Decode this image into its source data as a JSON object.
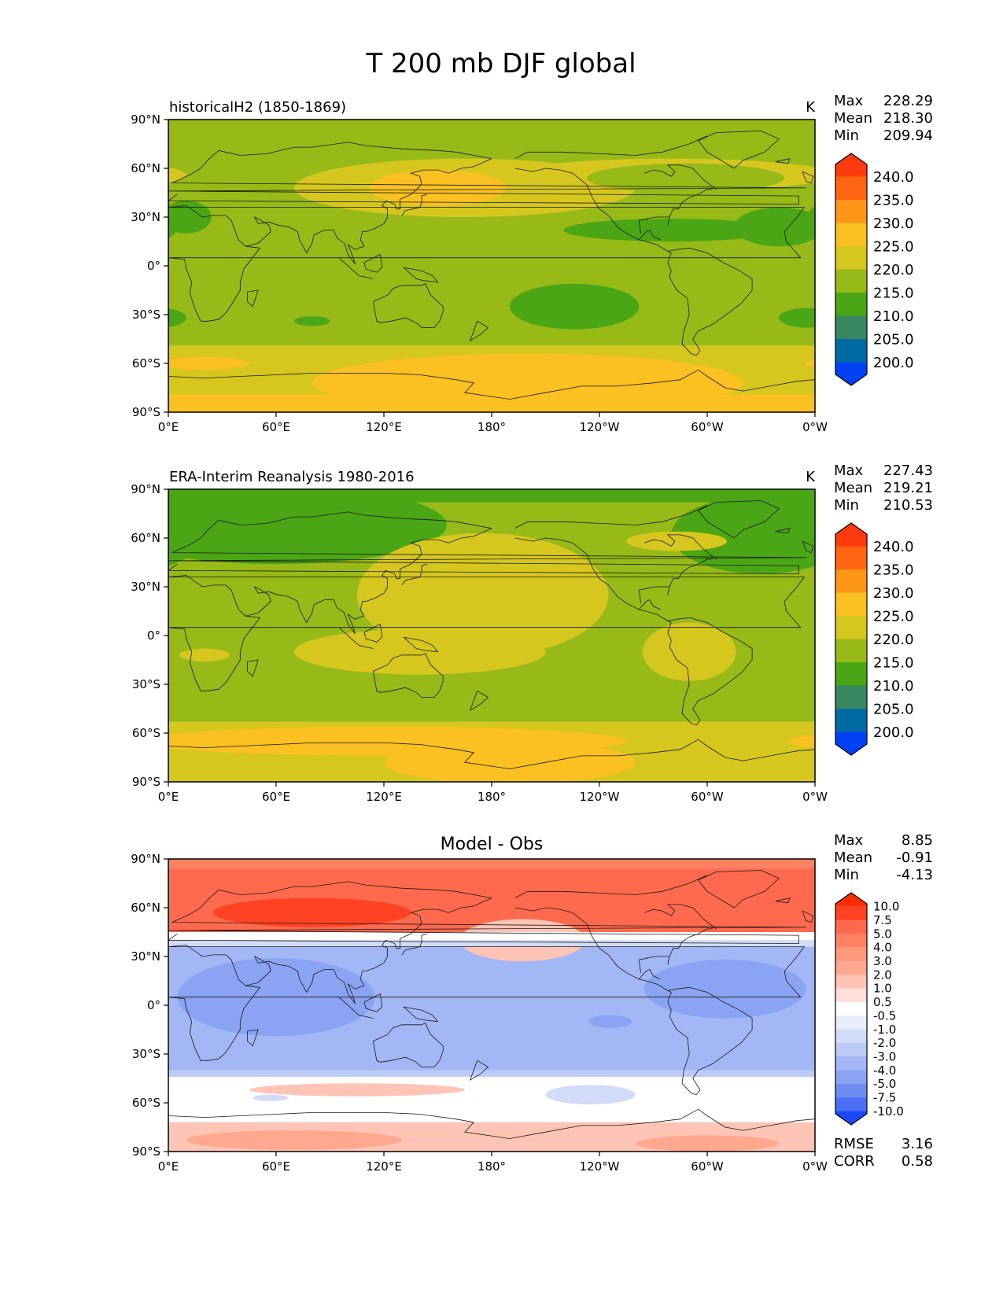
{
  "figure_title": "T 200 mb DJF global",
  "panels": [
    {
      "id": "model",
      "title_left": "historicalH2 (1850-1869)",
      "title_center": "",
      "units": "K",
      "stats": [
        [
          "Max",
          "228.29"
        ],
        [
          "Mean",
          "218.30"
        ],
        [
          "Min",
          "209.94"
        ]
      ],
      "extra_stats": [],
      "background_color": "#97ba18",
      "regions": [
        {
          "level": "225.0",
          "color": "#d6c71f",
          "shape": "ellipse",
          "lon": 165,
          "lat": 48,
          "rlon": 95,
          "rlat": 18
        },
        {
          "level": "230.0",
          "color": "#fbc021",
          "shape": "ellipse",
          "lon": 150,
          "lat": 48,
          "rlon": 38,
          "rlat": 11
        },
        {
          "level": "225.0",
          "color": "#d6c71f",
          "shape": "ellipse",
          "lon": 280,
          "lat": 56,
          "rlon": 90,
          "rlat": 10
        },
        {
          "level": "220.0",
          "color": "#97ba18",
          "shape": "ellipse",
          "lon": 288,
          "lat": 54,
          "rlon": 55,
          "rlat": 9
        },
        {
          "level": "210.0",
          "color": "#4aa614",
          "shape": "ellipse",
          "lon": 280,
          "lat": 22,
          "rlon": 60,
          "rlat": 7
        },
        {
          "level": "210.0",
          "color": "#4aa614",
          "shape": "ellipse",
          "lon": 340,
          "lat": 24,
          "rlon": 25,
          "rlat": 12
        },
        {
          "level": "210.0",
          "color": "#4aa614",
          "shape": "ellipse",
          "lon": 10,
          "lat": 30,
          "rlon": 14,
          "rlat": 10
        },
        {
          "level": "210.0",
          "color": "#4aa614",
          "shape": "ellipse",
          "lon": 226,
          "lat": -25,
          "rlon": 36,
          "rlat": 14
        },
        {
          "level": "210.0",
          "color": "#4aa614",
          "shape": "ellipse",
          "lon": 80,
          "lat": -34,
          "rlon": 10,
          "rlat": 3
        },
        {
          "level": "210.0",
          "color": "#4aa614",
          "shape": "ellipse",
          "lon": 355,
          "lat": -32,
          "rlon": 15,
          "rlat": 6
        },
        {
          "level": "220.0",
          "color": "#d6c71f",
          "shape": "band",
          "lat_top": -49,
          "lat_bot": -90
        },
        {
          "level": "225.0",
          "color": "#fbc021",
          "shape": "ellipse",
          "lon": 200,
          "lat": -72,
          "rlon": 120,
          "rlat": 18
        },
        {
          "level": "225.0",
          "color": "#fbc021",
          "shape": "ellipse",
          "lon": 20,
          "lat": -60,
          "rlon": 25,
          "rlat": 4
        },
        {
          "level": "225.0",
          "color": "#fbc021",
          "shape": "band",
          "lat_top": -79,
          "lat_bot": -90
        }
      ]
    },
    {
      "id": "obs",
      "title_left": "ERA-Interim Reanalysis 1980-2016",
      "title_center": "",
      "units": "K",
      "stats": [
        [
          "Max",
          "227.43"
        ],
        [
          "Mean",
          "219.21"
        ],
        [
          "Min",
          "210.53"
        ]
      ],
      "extra_stats": [],
      "background_color": "#97ba18",
      "regions": [
        {
          "level": "210.0",
          "color": "#4aa614",
          "shape": "ellipse",
          "lon": 60,
          "lat": 68,
          "rlon": 95,
          "rlat": 24
        },
        {
          "level": "210.0",
          "color": "#4aa614",
          "shape": "ellipse",
          "lon": 330,
          "lat": 62,
          "rlon": 50,
          "rlat": 24
        },
        {
          "level": "210.0",
          "color": "#4aa614",
          "shape": "band",
          "lat_top": 90,
          "lat_bot": 82
        },
        {
          "level": "220.0",
          "color": "#d6c71f",
          "shape": "ellipse",
          "lon": 175,
          "lat": 25,
          "rlon": 70,
          "rlat": 38
        },
        {
          "level": "220.0",
          "color": "#d6c71f",
          "shape": "ellipse",
          "lon": 140,
          "lat": -10,
          "rlon": 70,
          "rlat": 14
        },
        {
          "level": "220.0",
          "color": "#d6c71f",
          "shape": "ellipse",
          "lon": 283,
          "lat": 58,
          "rlon": 28,
          "rlat": 6
        },
        {
          "level": "220.0",
          "color": "#d6c71f",
          "shape": "ellipse",
          "lon": 290,
          "lat": -10,
          "rlon": 26,
          "rlat": 18
        },
        {
          "level": "220.0",
          "color": "#d6c71f",
          "shape": "ellipse",
          "lon": 20,
          "lat": -12,
          "rlon": 14,
          "rlat": 4
        },
        {
          "level": "220.0",
          "color": "#d6c71f",
          "shape": "band",
          "lat_top": -53,
          "lat_bot": -90
        },
        {
          "level": "225.0",
          "color": "#fbc021",
          "shape": "ellipse",
          "lon": 120,
          "lat": -65,
          "rlon": 135,
          "rlat": 9
        },
        {
          "level": "225.0",
          "color": "#fbc021",
          "shape": "ellipse",
          "lon": 190,
          "lat": -78,
          "rlon": 70,
          "rlat": 13
        }
      ]
    },
    {
      "id": "diff",
      "title_left": "",
      "title_center": "Model - Obs",
      "units": "",
      "stats": [
        [
          "Max",
          "8.85"
        ],
        [
          "Mean",
          "-0.91"
        ],
        [
          "Min",
          "-4.13"
        ]
      ],
      "extra_stats": [
        [
          "RMSE",
          "3.16"
        ],
        [
          "CORR",
          "0.58"
        ]
      ],
      "background_color": "#a3b6f6",
      "regions": [
        {
          "level": "4.0",
          "color": "#ff8163",
          "shape": "band",
          "lat_top": 90,
          "lat_bot": 84
        },
        {
          "level": "5.0",
          "color": "#ff6a4e",
          "shape": "band",
          "lat_top": 84,
          "lat_bot": 45
        },
        {
          "level": "7.5",
          "color": "#ff4223",
          "shape": "ellipse",
          "lon": 80,
          "lat": 57,
          "rlon": 55,
          "rlat": 9
        },
        {
          "level": "1.0",
          "color": "#ffc4b6",
          "shape": "ellipse",
          "lon": 197,
          "lat": 40,
          "rlon": 35,
          "rlat": 13
        },
        {
          "level": "0.5",
          "color": "#ffffff",
          "shape": "band",
          "lat_top": 45,
          "lat_bot": 40
        },
        {
          "level": "-1.0",
          "color": "#d2dcf8",
          "shape": "band",
          "lat_top": 40,
          "lat_bot": 36
        },
        {
          "level": "-3.0",
          "color": "#8aa3f2",
          "shape": "ellipse",
          "lon": 60,
          "lat": 5,
          "rlon": 55,
          "rlat": 24
        },
        {
          "level": "-3.0",
          "color": "#8aa3f2",
          "shape": "ellipse",
          "lon": 310,
          "lat": 10,
          "rlon": 45,
          "rlat": 18
        },
        {
          "level": "-3.0",
          "color": "#8aa3f2",
          "shape": "ellipse",
          "lon": 246,
          "lat": -10,
          "rlon": 12,
          "rlat": 4
        },
        {
          "level": "-2.0",
          "color": "#bccbf5",
          "shape": "band",
          "lat_top": -40,
          "lat_bot": -44
        },
        {
          "level": "0.5",
          "color": "#ffffff",
          "shape": "band",
          "lat_top": -44,
          "lat_bot": -72
        },
        {
          "level": "-1.0",
          "color": "#d2dcf8",
          "shape": "ellipse",
          "lon": 235,
          "lat": -55,
          "rlon": 25,
          "rlat": 6
        },
        {
          "level": "-1.0",
          "color": "#d2dcf8",
          "shape": "ellipse",
          "lon": 57,
          "lat": -57,
          "rlon": 10,
          "rlat": 2
        },
        {
          "level": "1.0",
          "color": "#ffc4b6",
          "shape": "ellipse",
          "lon": 105,
          "lat": -52,
          "rlon": 60,
          "rlat": 4
        },
        {
          "level": "1.0",
          "color": "#ffc4b6",
          "shape": "band",
          "lat_top": -72,
          "lat_bot": -90
        },
        {
          "level": "2.0",
          "color": "#ffa890",
          "shape": "ellipse",
          "lon": 70,
          "lat": -83,
          "rlon": 60,
          "rlat": 6
        },
        {
          "level": "2.0",
          "color": "#ffa890",
          "shape": "ellipse",
          "lon": 300,
          "lat": -85,
          "rlon": 40,
          "rlat": 5
        }
      ]
    }
  ],
  "x_ticks": [
    "0°E",
    "60°E",
    "120°E",
    "180°",
    "120°W",
    "60°W",
    "0°W"
  ],
  "y_ticks": [
    "90°N",
    "60°N",
    "30°N",
    "0°",
    "30°S",
    "60°S",
    "90°S"
  ],
  "colorbar_abs": {
    "levels": [
      "240.0",
      "235.0",
      "230.0",
      "225.0",
      "220.0",
      "215.0",
      "210.0",
      "205.0",
      "200.0"
    ],
    "colors": [
      "#ff3a0e",
      "#ff6510",
      "#fd9516",
      "#fbc021",
      "#d6c71f",
      "#97ba18",
      "#4aa614",
      "#388761",
      "#006aa5",
      "#0041f5"
    ]
  },
  "colorbar_diff": {
    "levels": [
      "10.0",
      "7.5",
      "5.0",
      "4.0",
      "3.0",
      "2.0",
      "1.0",
      "0.5",
      "-0.5",
      "-1.0",
      "-2.0",
      "-3.0",
      "-4.0",
      "-5.0",
      "-7.5",
      "-10.0"
    ],
    "colors": [
      "#ff2c00",
      "#ff4223",
      "#ff6a4e",
      "#ff8163",
      "#ff9a7c",
      "#ffa890",
      "#ffc4b6",
      "#ffdfd8",
      "#ffffff",
      "#e8eefc",
      "#d2dcf8",
      "#bccbf5",
      "#a3b6f6",
      "#8aa3f2",
      "#6f8cf2",
      "#4b70f5",
      "#1c48f8"
    ]
  },
  "chart_data": [
    {
      "type": "heatmap",
      "title": "historicalH2 (1850-1869)",
      "units": "K",
      "x": [
        0,
        60,
        120,
        180,
        240,
        300,
        360
      ],
      "y": [
        90,
        60,
        30,
        0,
        -30,
        -60,
        -90
      ],
      "xlim": [
        0,
        360
      ],
      "ylim": [
        -90,
        90
      ],
      "max": 228.29,
      "mean": 218.3,
      "min": 209.94
    },
    {
      "type": "heatmap",
      "title": "ERA-Interim Reanalysis 1980-2016",
      "units": "K",
      "x": [
        0,
        60,
        120,
        180,
        240,
        300,
        360
      ],
      "y": [
        90,
        60,
        30,
        0,
        -30,
        -60,
        -90
      ],
      "xlim": [
        0,
        360
      ],
      "ylim": [
        -90,
        90
      ],
      "max": 227.43,
      "mean": 219.21,
      "min": 210.53
    },
    {
      "type": "heatmap",
      "title": "Model - Obs",
      "x": [
        0,
        60,
        120,
        180,
        240,
        300,
        360
      ],
      "y": [
        90,
        60,
        30,
        0,
        -30,
        -60,
        -90
      ],
      "xlim": [
        0,
        360
      ],
      "ylim": [
        -90,
        90
      ],
      "max": 8.85,
      "mean": -0.91,
      "min": -4.13,
      "rmse": 3.16,
      "corr": 0.58
    }
  ]
}
